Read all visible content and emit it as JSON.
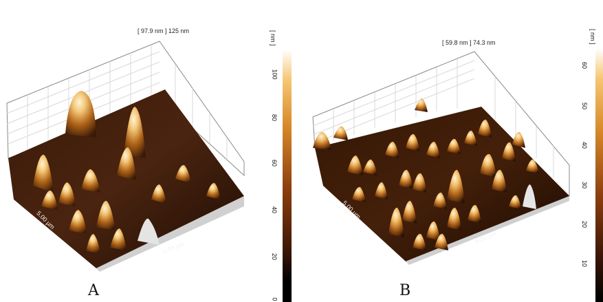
{
  "panels": [
    {
      "letter": "A",
      "range_label": "[ 97.9 nm ] 125 nm",
      "axis_left": "5.00 µm",
      "axis_bottom": "5.00 µm",
      "colorbar": {
        "unit": "[ nm ]",
        "ticks": [
          "100",
          "80",
          "60",
          "40",
          "20",
          "0"
        ]
      }
    },
    {
      "letter": "B",
      "range_label": "[ 59.8 nm ] 74.3 nm",
      "axis_left": "5.00 µm",
      "axis_bottom": "5.00 µm",
      "colorbar": {
        "unit": "[ nm ]",
        "ticks": [
          "60",
          "50",
          "40",
          "30",
          "20",
          "10"
        ]
      }
    }
  ],
  "colors": {
    "surface_dark": "#2a1406",
    "surface_mid": "#6b3510",
    "peak_bright": "#f3c777",
    "peak_white": "#fff2d8",
    "grid": "#d8d8d8",
    "box_line": "#666666"
  }
}
